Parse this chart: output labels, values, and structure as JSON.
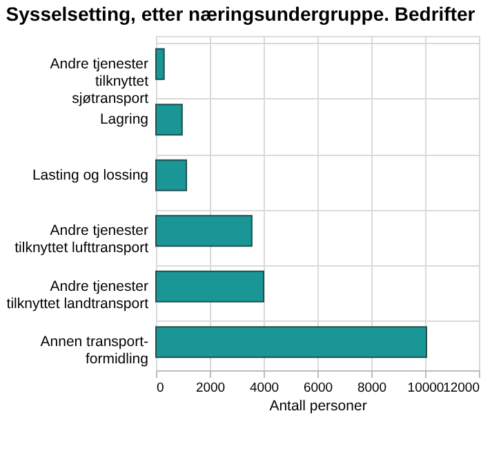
{
  "chart_data": {
    "type": "bar",
    "orientation": "horizontal",
    "title": "Sysselsetting, etter næringsundergruppe. Bedrifter",
    "categories": [
      "Andre tjenester\ntilknyttet\nsjøtransport",
      "Lagring",
      "Lasting og lossing",
      "Andre tjenester\ntilknyttet lufttransport",
      "Andre tjenester\ntilknyttet landtransport",
      "Annen transport-\nformidling"
    ],
    "values": [
      300,
      970,
      1130,
      3560,
      4000,
      10050
    ],
    "color": "#1a9696",
    "xlim": [
      0,
      12000
    ],
    "xticks": [
      0,
      2000,
      4000,
      6000,
      8000,
      10000,
      12000
    ],
    "xlabel": "Antall personer",
    "grid": true
  }
}
